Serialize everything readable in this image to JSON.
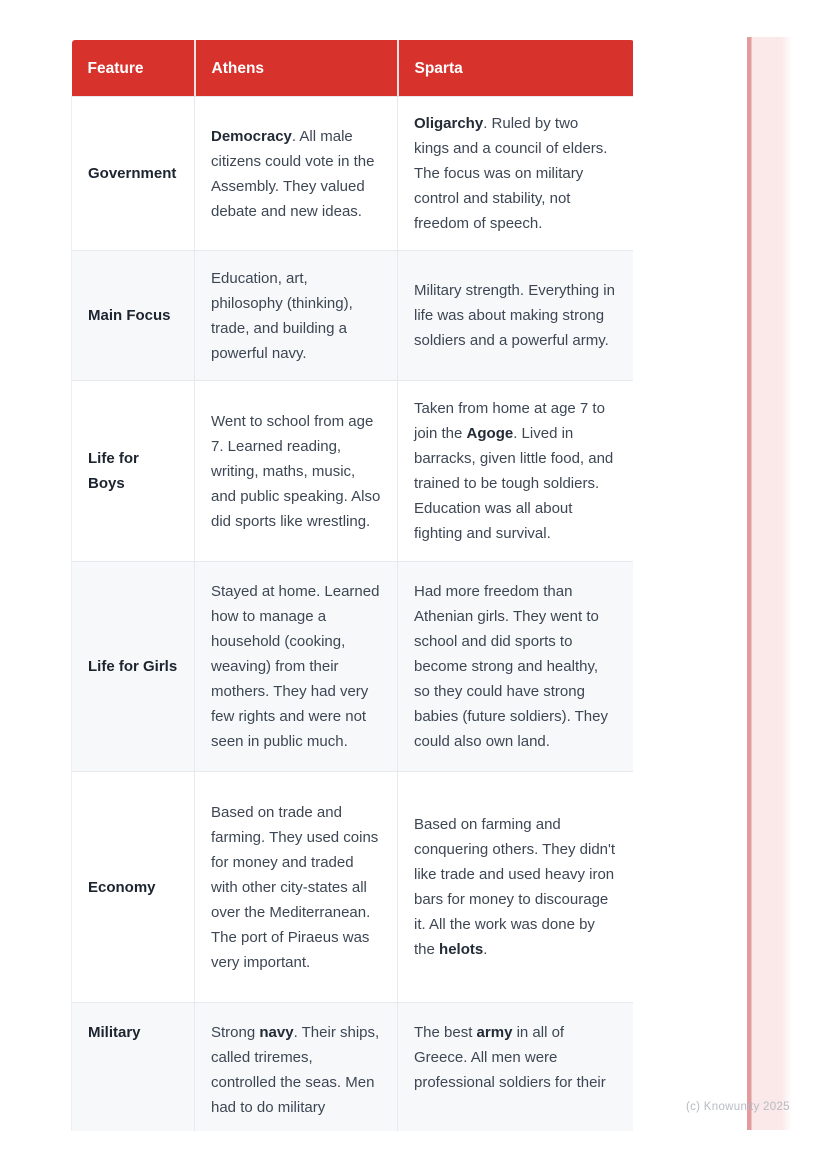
{
  "watermark": {
    "text": "(c) Knowunity 2025"
  },
  "colors": {
    "header_red": "#d8322c",
    "stripe_line": "#e29a9c",
    "stripe_fill": "#fbe8e8",
    "row_alt_bg": "#f7f8fa",
    "body_text": "#3d4754",
    "watermark_text": "#b6bcc3"
  },
  "table": {
    "columns": [
      "Feature",
      "Athens",
      "Sparta"
    ],
    "rows": [
      {
        "feature": "Government",
        "athens": [
          {
            "b": "Democracy"
          },
          {
            "t": ". All male citizens could vote in the Assembly. They valued debate and new ideas."
          }
        ],
        "sparta": [
          {
            "b": "Oligarchy"
          },
          {
            "t": ". Ruled by two kings and a council of elders. The focus was on military control and stability, not freedom of speech."
          }
        ]
      },
      {
        "feature": "Main Focus",
        "athens": [
          {
            "t": "Education, art, philosophy (thinking), trade, and building a powerful navy."
          }
        ],
        "sparta": [
          {
            "t": "Military strength. Everything in life was about making strong soldiers and a powerful army."
          }
        ]
      },
      {
        "feature": "Life for\nBoys",
        "athens": [
          {
            "t": "Went to school from age 7. Learned reading, writing, maths, music, and public speaking. Also did sports like wrestling."
          }
        ],
        "sparta": [
          {
            "t": "Taken from home at age 7 to join the "
          },
          {
            "b": "Agoge"
          },
          {
            "t": ". Lived in barracks, given little food, and trained to be tough soldiers. Education was all about fighting and survival."
          }
        ]
      },
      {
        "feature": "Life for Girls",
        "athens": [
          {
            "t": "Stayed at home. Learned how to manage a household (cooking, weaving) from their mothers. They had very few rights and were not seen in public much."
          }
        ],
        "sparta": [
          {
            "t": "Had more freedom than Athenian girls. They went to school and did sports to become strong and healthy, so they could have strong babies (future soldiers). They could also own land."
          }
        ]
      },
      {
        "feature": "Economy",
        "athens": [
          {
            "t": "Based on trade and farming. They used coins for money and traded with other city-states all over the Mediterranean. The port of Piraeus was very important."
          }
        ],
        "sparta": [
          {
            "t": "Based on farming and conquering others. They didn't like trade and used heavy iron bars for money to discourage it. All the work was done by the "
          },
          {
            "b": "helots"
          },
          {
            "t": "."
          }
        ]
      },
      {
        "feature": "Military",
        "athens": [
          {
            "t": "Strong "
          },
          {
            "b": "navy"
          },
          {
            "t": ". Their ships, called triremes, controlled the seas. Men had to do military"
          }
        ],
        "sparta": [
          {
            "t": "The best "
          },
          {
            "b": "army"
          },
          {
            "t": " in all of Greece. All men were professional soldiers for their"
          }
        ]
      }
    ]
  }
}
